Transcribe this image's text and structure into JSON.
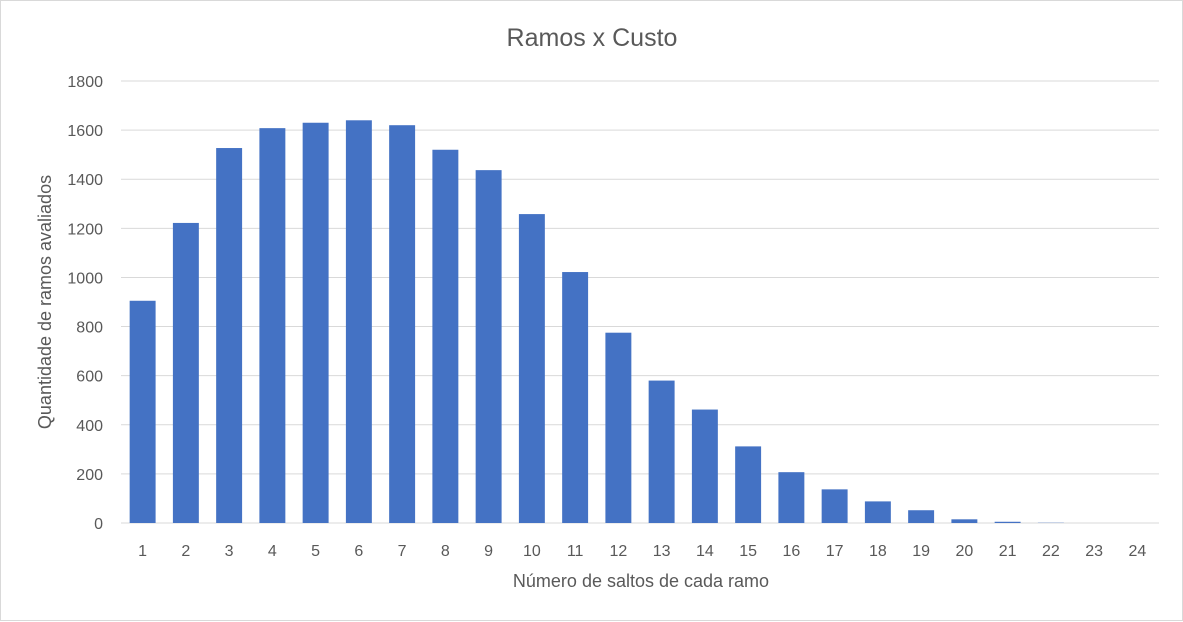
{
  "chart_data": {
    "type": "bar",
    "title": "Ramos x Custo",
    "xlabel": "Número de saltos de cada ramo",
    "ylabel": "Quantidade de ramos avaliados",
    "categories": [
      "1",
      "2",
      "3",
      "4",
      "5",
      "6",
      "7",
      "8",
      "9",
      "10",
      "11",
      "12",
      "13",
      "14",
      "15",
      "16",
      "17",
      "18",
      "19",
      "20",
      "21",
      "22",
      "23",
      "24"
    ],
    "values": [
      905,
      1222,
      1527,
      1608,
      1630,
      1640,
      1620,
      1520,
      1437,
      1258,
      1022,
      775,
      580,
      462,
      312,
      207,
      137,
      88,
      52,
      15,
      5,
      1,
      0,
      0
    ],
    "yticks": [
      "0",
      "200",
      "400",
      "600",
      "800",
      "1000",
      "1200",
      "1400",
      "1600",
      "1800"
    ],
    "ylim": [
      0,
      1800
    ],
    "grid": true,
    "legend": "none",
    "bar_color": "#4472c4",
    "grid_color": "#d9d9d9",
    "text_color": "#595959"
  }
}
